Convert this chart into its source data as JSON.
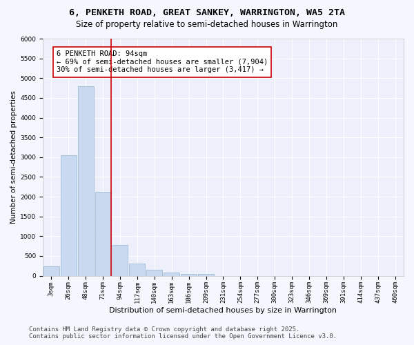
{
  "title1": "6, PENKETH ROAD, GREAT SANKEY, WARRINGTON, WA5 2TA",
  "title2": "Size of property relative to semi-detached houses in Warrington",
  "xlabel": "Distribution of semi-detached houses by size in Warrington",
  "ylabel": "Number of semi-detached properties",
  "categories": [
    "3sqm",
    "26sqm",
    "48sqm",
    "71sqm",
    "94sqm",
    "117sqm",
    "140sqm",
    "163sqm",
    "186sqm",
    "209sqm",
    "231sqm",
    "254sqm",
    "277sqm",
    "300sqm",
    "323sqm",
    "346sqm",
    "369sqm",
    "391sqm",
    "414sqm",
    "437sqm",
    "460sqm"
  ],
  "values": [
    240,
    3050,
    4800,
    2130,
    780,
    310,
    150,
    80,
    50,
    45,
    0,
    0,
    0,
    0,
    0,
    0,
    0,
    0,
    0,
    0,
    0
  ],
  "bar_color": "#c9d9f0",
  "bar_edge_color": "#a0bcd8",
  "vline_index": 3,
  "vline_color": "#cc0000",
  "annotation_title": "6 PENKETH ROAD: 94sqm",
  "annotation_line1": "← 69% of semi-detached houses are smaller (7,904)",
  "annotation_line2": "30% of semi-detached houses are larger (3,417) →",
  "annotation_box_edgecolor": "#cc0000",
  "ylim": [
    0,
    6000
  ],
  "yticks": [
    0,
    500,
    1000,
    1500,
    2000,
    2500,
    3000,
    3500,
    4000,
    4500,
    5000,
    5500,
    6000
  ],
  "footer1": "Contains HM Land Registry data © Crown copyright and database right 2025.",
  "footer2": "Contains public sector information licensed under the Open Government Licence v3.0.",
  "bg_color": "#f5f7ff",
  "plot_bg_color": "#edf0fb",
  "grid_color": "#ffffff",
  "title1_fontsize": 9.5,
  "title2_fontsize": 8.5,
  "xlabel_fontsize": 8,
  "ylabel_fontsize": 7.5,
  "tick_fontsize": 6.5,
  "footer_fontsize": 6.5,
  "annotation_fontsize": 7.5
}
